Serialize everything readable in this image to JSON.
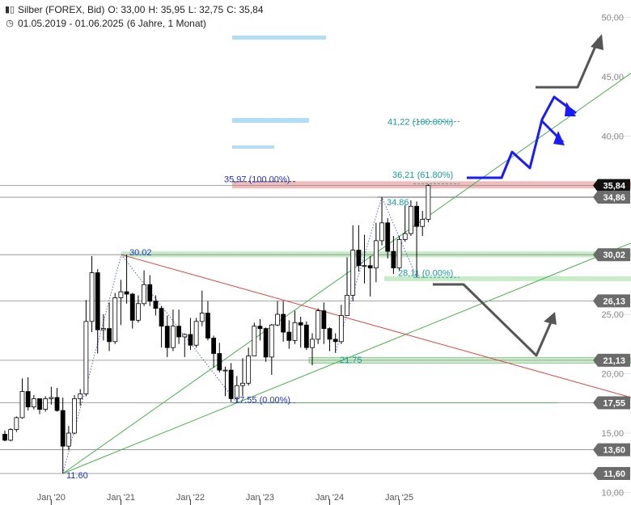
{
  "header": {
    "instrument": "Silber (FOREX, Bid)",
    "open": "O: 33,00",
    "high": "H: 35,95",
    "low": "L: 32,75",
    "close": "C: 35,84",
    "period": "01.05.2019 - 01.06.2025",
    "span": "(6 Jahre, 1 Monat)",
    "chart_icon": "candlestick-icon",
    "period_icon": "clock-icon"
  },
  "chart_data": {
    "type": "candlestick",
    "ylim": [
      10,
      51
    ],
    "y_ticks": [
      "10,00",
      "15,00",
      "20,00",
      "25,00",
      "30,00",
      "35,00",
      "40,00",
      "45,00",
      "50,00"
    ],
    "x_ticks": [
      "Jan '20",
      "Jan '21",
      "Jan '22",
      "Jan '23",
      "Jan '24",
      "Jan '25"
    ],
    "colors": {
      "up": "#ffffff",
      "down": "#000000",
      "wick": "#000000",
      "ma_green": "#4caf50",
      "trend_red": "#d94040",
      "arrow_blue": "#1a1aff",
      "arrow_gray": "#555555",
      "fib_teal": "#1a9a9a",
      "label_blue": "#2233cc"
    },
    "level_badges": [
      {
        "value": 35.84,
        "label": "35,84",
        "style": "black"
      },
      {
        "value": 34.86,
        "label": "34,86",
        "style": "gray"
      },
      {
        "value": 30.02,
        "label": "30,02",
        "style": "gray"
      },
      {
        "value": 26.13,
        "label": "26,13",
        "style": "gray"
      },
      {
        "value": 21.13,
        "label": "21,13",
        "style": "gray"
      },
      {
        "value": 17.55,
        "label": "17,55",
        "style": "gray"
      },
      {
        "value": 13.6,
        "label": "13,60",
        "style": "gray"
      },
      {
        "value": 11.6,
        "label": "11,60",
        "style": "gray"
      }
    ],
    "annotations": [
      {
        "text": "30.02",
        "x": "2021-02",
        "y": 30.02,
        "color": "blue"
      },
      {
        "text": "11.60",
        "x": "2020-03",
        "y": 11.6,
        "color": "blue"
      },
      {
        "text": "17.55 (0.00%)",
        "x": "2022-09",
        "y": 17.55,
        "color": "blue"
      },
      {
        "text": "35,97 (100.00%)",
        "x": "2022-07",
        "y": 35.97,
        "color": "blue"
      },
      {
        "text": "21.75",
        "x": "2024-02",
        "y": 21.75,
        "color": "teal"
      },
      {
        "text": "34.86",
        "x": "2024-10",
        "y": 34.86,
        "color": "teal"
      },
      {
        "text": "28,11 (0.00%)",
        "x": "2025-01",
        "y": 28.11,
        "color": "teal"
      },
      {
        "text": "36,21 (61.80%)",
        "x": "2025-01",
        "y": 36.21,
        "color": "teal"
      },
      {
        "text": "41,22 (100.00%)",
        "x": "2025-01",
        "y": 41.22,
        "color": "teal"
      }
    ],
    "candles": [
      {
        "t": "2019-05",
        "o": 14.9,
        "h": 15.2,
        "l": 14.3,
        "c": 14.4
      },
      {
        "t": "2019-06",
        "o": 14.4,
        "h": 15.4,
        "l": 14.3,
        "c": 15.3
      },
      {
        "t": "2019-07",
        "o": 15.3,
        "h": 16.4,
        "l": 15.1,
        "c": 16.3
      },
      {
        "t": "2019-08",
        "o": 16.3,
        "h": 19.6,
        "l": 16.2,
        "c": 18.5
      },
      {
        "t": "2019-09",
        "o": 18.5,
        "h": 19.7,
        "l": 16.9,
        "c": 17.2
      },
      {
        "t": "2019-10",
        "o": 17.2,
        "h": 18.2,
        "l": 17.0,
        "c": 17.9
      },
      {
        "t": "2019-11",
        "o": 17.9,
        "h": 17.9,
        "l": 16.6,
        "c": 17.0
      },
      {
        "t": "2019-12",
        "o": 17.0,
        "h": 18.1,
        "l": 16.8,
        "c": 17.9
      },
      {
        "t": "2020-01",
        "o": 17.9,
        "h": 18.9,
        "l": 17.4,
        "c": 18.0
      },
      {
        "t": "2020-02",
        "o": 18.0,
        "h": 18.8,
        "l": 16.8,
        "c": 16.9
      },
      {
        "t": "2020-03",
        "o": 16.9,
        "h": 18.0,
        "l": 11.6,
        "c": 13.9
      },
      {
        "t": "2020-04",
        "o": 13.9,
        "h": 15.6,
        "l": 13.6,
        "c": 15.0
      },
      {
        "t": "2020-05",
        "o": 15.0,
        "h": 18.2,
        "l": 14.9,
        "c": 17.9
      },
      {
        "t": "2020-06",
        "o": 17.9,
        "h": 18.7,
        "l": 17.3,
        "c": 18.3
      },
      {
        "t": "2020-07",
        "o": 18.3,
        "h": 26.2,
        "l": 18.1,
        "c": 24.4
      },
      {
        "t": "2020-08",
        "o": 24.4,
        "h": 29.9,
        "l": 23.5,
        "c": 28.5
      },
      {
        "t": "2020-09",
        "o": 28.5,
        "h": 28.8,
        "l": 21.7,
        "c": 23.7
      },
      {
        "t": "2020-10",
        "o": 23.7,
        "h": 25.0,
        "l": 22.8,
        "c": 23.8
      },
      {
        "t": "2020-11",
        "o": 23.8,
        "h": 26.0,
        "l": 21.9,
        "c": 22.7
      },
      {
        "t": "2020-12",
        "o": 22.7,
        "h": 26.8,
        "l": 22.5,
        "c": 26.4
      },
      {
        "t": "2021-01",
        "o": 26.4,
        "h": 27.9,
        "l": 24.1,
        "c": 26.9
      },
      {
        "t": "2021-02",
        "o": 26.9,
        "h": 30.0,
        "l": 25.9,
        "c": 26.7
      },
      {
        "t": "2021-03",
        "o": 26.7,
        "h": 26.8,
        "l": 23.8,
        "c": 24.5
      },
      {
        "t": "2021-04",
        "o": 24.5,
        "h": 26.6,
        "l": 24.3,
        "c": 25.9
      },
      {
        "t": "2021-05",
        "o": 25.9,
        "h": 28.7,
        "l": 25.7,
        "c": 27.5
      },
      {
        "t": "2021-06",
        "o": 27.5,
        "h": 28.3,
        "l": 25.7,
        "c": 26.1
      },
      {
        "t": "2021-07",
        "o": 26.1,
        "h": 26.6,
        "l": 24.9,
        "c": 25.5
      },
      {
        "t": "2021-08",
        "o": 25.5,
        "h": 25.7,
        "l": 22.2,
        "c": 24.0
      },
      {
        "t": "2021-09",
        "o": 24.0,
        "h": 24.9,
        "l": 21.4,
        "c": 22.2
      },
      {
        "t": "2021-10",
        "o": 22.2,
        "h": 25.4,
        "l": 21.9,
        "c": 24.0
      },
      {
        "t": "2021-11",
        "o": 24.0,
        "h": 25.4,
        "l": 22.5,
        "c": 23.1
      },
      {
        "t": "2021-12",
        "o": 23.1,
        "h": 23.4,
        "l": 21.4,
        "c": 23.3
      },
      {
        "t": "2022-01",
        "o": 23.3,
        "h": 24.7,
        "l": 22.0,
        "c": 22.4
      },
      {
        "t": "2022-02",
        "o": 22.4,
        "h": 24.7,
        "l": 22.2,
        "c": 24.4
      },
      {
        "t": "2022-03",
        "o": 24.4,
        "h": 27.0,
        "l": 24.0,
        "c": 25.1
      },
      {
        "t": "2022-04",
        "o": 25.1,
        "h": 26.1,
        "l": 22.8,
        "c": 23.0
      },
      {
        "t": "2022-05",
        "o": 23.0,
        "h": 23.2,
        "l": 20.5,
        "c": 21.7
      },
      {
        "t": "2022-06",
        "o": 21.7,
        "h": 22.6,
        "l": 20.1,
        "c": 20.3
      },
      {
        "t": "2022-07",
        "o": 20.3,
        "h": 20.6,
        "l": 18.1,
        "c": 20.3
      },
      {
        "t": "2022-08",
        "o": 20.3,
        "h": 20.9,
        "l": 17.6,
        "c": 17.9
      },
      {
        "t": "2022-09",
        "o": 17.9,
        "h": 19.8,
        "l": 17.55,
        "c": 19.0
      },
      {
        "t": "2022-10",
        "o": 19.0,
        "h": 21.3,
        "l": 18.1,
        "c": 19.2
      },
      {
        "t": "2022-11",
        "o": 19.2,
        "h": 22.2,
        "l": 19.0,
        "c": 21.5
      },
      {
        "t": "2022-12",
        "o": 21.5,
        "h": 24.3,
        "l": 21.5,
        "c": 24.0
      },
      {
        "t": "2023-01",
        "o": 24.0,
        "h": 24.6,
        "l": 22.8,
        "c": 23.8
      },
      {
        "t": "2023-02",
        "o": 23.8,
        "h": 23.9,
        "l": 21.0,
        "c": 21.4
      },
      {
        "t": "2023-03",
        "o": 21.4,
        "h": 24.2,
        "l": 19.9,
        "c": 24.1
      },
      {
        "t": "2023-04",
        "o": 24.1,
        "h": 26.1,
        "l": 24.0,
        "c": 25.0
      },
      {
        "t": "2023-05",
        "o": 25.0,
        "h": 26.1,
        "l": 22.7,
        "c": 23.5
      },
      {
        "t": "2023-06",
        "o": 23.5,
        "h": 24.5,
        "l": 22.1,
        "c": 22.8
      },
      {
        "t": "2023-07",
        "o": 22.8,
        "h": 25.3,
        "l": 22.5,
        "c": 24.3
      },
      {
        "t": "2023-08",
        "o": 24.3,
        "h": 24.8,
        "l": 22.2,
        "c": 24.1
      },
      {
        "t": "2023-09",
        "o": 24.1,
        "h": 24.4,
        "l": 22.0,
        "c": 22.2
      },
      {
        "t": "2023-10",
        "o": 22.2,
        "h": 23.4,
        "l": 20.7,
        "c": 22.9
      },
      {
        "t": "2023-11",
        "o": 22.9,
        "h": 25.5,
        "l": 22.5,
        "c": 25.3
      },
      {
        "t": "2023-12",
        "o": 25.3,
        "h": 26.0,
        "l": 22.5,
        "c": 23.8
      },
      {
        "t": "2024-01",
        "o": 23.8,
        "h": 23.9,
        "l": 21.9,
        "c": 22.9
      },
      {
        "t": "2024-02",
        "o": 22.9,
        "h": 23.4,
        "l": 21.75,
        "c": 22.7
      },
      {
        "t": "2024-03",
        "o": 22.7,
        "h": 25.8,
        "l": 22.5,
        "c": 24.9
      },
      {
        "t": "2024-04",
        "o": 24.9,
        "h": 29.8,
        "l": 24.9,
        "c": 26.6
      },
      {
        "t": "2024-05",
        "o": 26.6,
        "h": 32.5,
        "l": 26.1,
        "c": 30.4
      },
      {
        "t": "2024-06",
        "o": 30.4,
        "h": 32.5,
        "l": 28.6,
        "c": 29.1
      },
      {
        "t": "2024-07",
        "o": 29.1,
        "h": 31.7,
        "l": 27.6,
        "c": 29.1
      },
      {
        "t": "2024-08",
        "o": 29.1,
        "h": 29.9,
        "l": 26.5,
        "c": 28.9
      },
      {
        "t": "2024-09",
        "o": 28.9,
        "h": 32.7,
        "l": 27.7,
        "c": 31.2
      },
      {
        "t": "2024-10",
        "o": 31.2,
        "h": 34.86,
        "l": 30.8,
        "c": 32.7
      },
      {
        "t": "2024-11",
        "o": 32.7,
        "h": 33.1,
        "l": 29.7,
        "c": 30.3
      },
      {
        "t": "2024-12",
        "o": 30.3,
        "h": 31.6,
        "l": 28.4,
        "c": 28.9
      },
      {
        "t": "2025-01",
        "o": 28.9,
        "h": 31.6,
        "l": 28.7,
        "c": 31.3
      },
      {
        "t": "2025-02",
        "o": 31.3,
        "h": 34.2,
        "l": 31.1,
        "c": 31.8
      },
      {
        "t": "2025-03",
        "o": 31.8,
        "h": 34.6,
        "l": 31.6,
        "c": 34.1
      },
      {
        "t": "2025-04",
        "o": 34.1,
        "h": 34.5,
        "l": 28.11,
        "c": 32.4
      },
      {
        "t": "2025-05",
        "o": 32.4,
        "h": 33.7,
        "l": 31.6,
        "c": 33.0
      },
      {
        "t": "2025-06",
        "o": 33.0,
        "h": 35.95,
        "l": 32.75,
        "c": 35.84
      }
    ]
  }
}
